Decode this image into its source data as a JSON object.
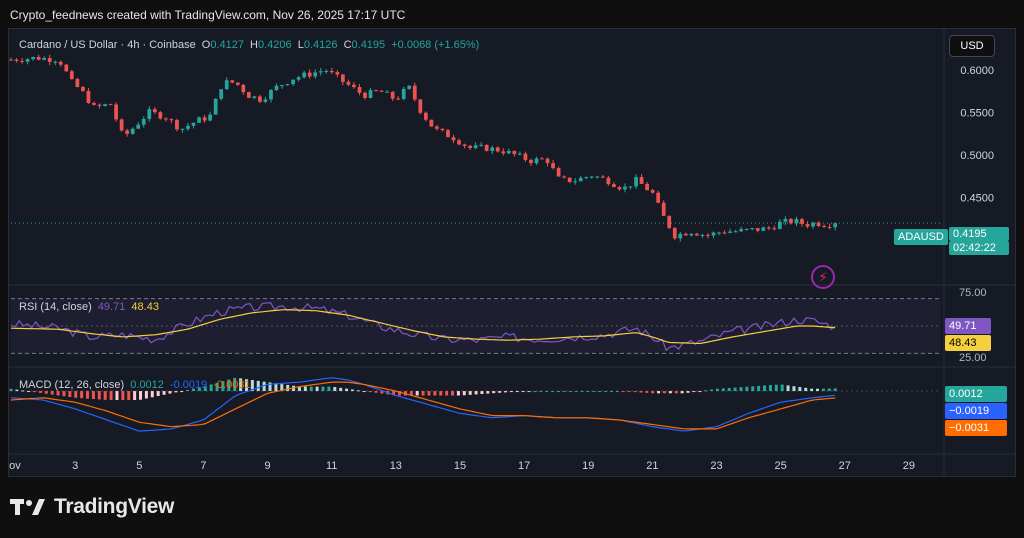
{
  "credit": "Crypto_feednews created with TradingView.com, Nov 26, 2025 17:17 UTC",
  "symbol": {
    "name": "Cardano / US Dollar · 4h · Coinbase",
    "o_label": "O",
    "o_value": "0.4127",
    "h_label": "H",
    "h_value": "0.4206",
    "l_label": "L",
    "l_value": "0.4126",
    "c_label": "C",
    "c_value": "0.4195",
    "change": "+0.0068 (+1.65%)"
  },
  "currency": "USD",
  "price_tag": {
    "ticker": "ADAUSD",
    "price": "0.4195",
    "countdown": "02:42:22"
  },
  "rsi": {
    "label": "RSI (14, close)",
    "value": "49.71",
    "ma": "48.43",
    "levels": [
      "75.00",
      "25.00"
    ]
  },
  "macd": {
    "label": "MACD (12, 26, close)",
    "hist": "0.0012",
    "macd": "-0.0019",
    "signal": "-0.0031",
    "hist_tag": "0.0012",
    "macd_tag": "−0.0019",
    "signal_tag": "−0.0031"
  },
  "footer": {
    "brand": "TradingView"
  },
  "colors": {
    "up": "#26a69a",
    "down": "#ef5350",
    "rsi": "#7e57c2",
    "rsi_ma": "#f4d03f",
    "macd": "#2962ff",
    "signal": "#ff6d00",
    "bg": "#161a25"
  },
  "chart_data": [
    {
      "type": "candlestick",
      "title": "Cardano / US Dollar · 4h · Coinbase",
      "y_ticks": [
        "0.6000",
        "0.5500",
        "0.5000",
        "0.4500"
      ],
      "ylim": [
        0.375,
        0.615
      ],
      "x_ticks": [
        "Nov",
        "3",
        "5",
        "7",
        "9",
        "11",
        "13",
        "15",
        "17",
        "19",
        "21",
        "23",
        "25",
        "27",
        "29"
      ],
      "xlim": [
        1,
        30
      ],
      "last_close": 0.4195,
      "close_path": [
        [
          1.0,
          0.612
        ],
        [
          1.8,
          0.614
        ],
        [
          2.5,
          0.612
        ],
        [
          2.9,
          0.585
        ],
        [
          3.2,
          0.575
        ],
        [
          3.6,
          0.555
        ],
        [
          4.1,
          0.56
        ],
        [
          4.5,
          0.52
        ],
        [
          4.9,
          0.535
        ],
        [
          5.3,
          0.55
        ],
        [
          5.8,
          0.545
        ],
        [
          6.3,
          0.53
        ],
        [
          6.8,
          0.54
        ],
        [
          7.2,
          0.545
        ],
        [
          7.6,
          0.585
        ],
        [
          8.0,
          0.585
        ],
        [
          8.4,
          0.57
        ],
        [
          8.8,
          0.565
        ],
        [
          9.3,
          0.58
        ],
        [
          9.8,
          0.59
        ],
        [
          10.3,
          0.595
        ],
        [
          10.8,
          0.6
        ],
        [
          11.2,
          0.59
        ],
        [
          11.6,
          0.58
        ],
        [
          12.0,
          0.57
        ],
        [
          12.5,
          0.575
        ],
        [
          13.0,
          0.565
        ],
        [
          13.4,
          0.58
        ],
        [
          13.8,
          0.55
        ],
        [
          14.2,
          0.53
        ],
        [
          14.8,
          0.52
        ],
        [
          15.3,
          0.508
        ],
        [
          15.8,
          0.508
        ],
        [
          16.3,
          0.505
        ],
        [
          16.7,
          0.5
        ],
        [
          17.2,
          0.493
        ],
        [
          17.7,
          0.495
        ],
        [
          18.1,
          0.47
        ],
        [
          18.6,
          0.47
        ],
        [
          19.1,
          0.476
        ],
        [
          19.6,
          0.47
        ],
        [
          20.1,
          0.46
        ],
        [
          20.5,
          0.47
        ],
        [
          21.0,
          0.455
        ],
        [
          21.3,
          0.43
        ],
        [
          21.7,
          0.405
        ],
        [
          22.2,
          0.41
        ],
        [
          22.7,
          0.405
        ],
        [
          23.2,
          0.41
        ],
        [
          23.7,
          0.41
        ],
        [
          24.2,
          0.412
        ],
        [
          24.6,
          0.413
        ],
        [
          25.0,
          0.42
        ],
        [
          25.4,
          0.422
        ],
        [
          25.8,
          0.418
        ],
        [
          26.1,
          0.42
        ],
        [
          26.4,
          0.418
        ],
        [
          26.7,
          0.4195
        ]
      ]
    },
    {
      "type": "line",
      "title": "RSI (14, close)",
      "ylim": [
        18,
        82
      ],
      "levels": [
        75,
        25
      ],
      "series": [
        {
          "name": "RSI",
          "points": [
            [
              1.0,
              52
            ],
            [
              2.5,
              48
            ],
            [
              3.5,
              40
            ],
            [
              4.5,
              42
            ],
            [
              5.5,
              38
            ],
            [
              6.5,
              52
            ],
            [
              7.5,
              63
            ],
            [
              8.5,
              67
            ],
            [
              9.5,
              68
            ],
            [
              10.5,
              66
            ],
            [
              11.5,
              60
            ],
            [
              12.5,
              50
            ],
            [
              13.5,
              43
            ],
            [
              14.5,
              38
            ],
            [
              15.5,
              37
            ],
            [
              16.5,
              40
            ],
            [
              17.5,
              38
            ],
            [
              18.5,
              40
            ],
            [
              19.5,
              42
            ],
            [
              20.5,
              48
            ],
            [
              21.0,
              40
            ],
            [
              21.5,
              30
            ],
            [
              22.5,
              36
            ],
            [
              23.5,
              45
            ],
            [
              24.5,
              50
            ],
            [
              25.5,
              56
            ],
            [
              26.0,
              55
            ],
            [
              26.7,
              49.71
            ]
          ]
        },
        {
          "name": "RSI MA",
          "points": [
            [
              1.0,
              48
            ],
            [
              2.5,
              47
            ],
            [
              3.5,
              43
            ],
            [
              4.5,
              40
            ],
            [
              5.5,
              42
            ],
            [
              6.5,
              47
            ],
            [
              7.5,
              56
            ],
            [
              8.5,
              62
            ],
            [
              9.5,
              65
            ],
            [
              10.5,
              64
            ],
            [
              11.5,
              60
            ],
            [
              12.5,
              53
            ],
            [
              13.5,
              46
            ],
            [
              14.5,
              40
            ],
            [
              15.5,
              38
            ],
            [
              16.5,
              37
            ],
            [
              17.5,
              38
            ],
            [
              18.5,
              40
            ],
            [
              19.5,
              41
            ],
            [
              20.5,
              44
            ],
            [
              21.0,
              40
            ],
            [
              21.5,
              35
            ],
            [
              22.5,
              34
            ],
            [
              23.5,
              40
            ],
            [
              24.5,
              45
            ],
            [
              25.5,
              50
            ],
            [
              26.0,
              50
            ],
            [
              26.7,
              48.43
            ]
          ]
        }
      ]
    },
    {
      "type": "line",
      "title": "MACD (12, 26, close)",
      "ylim": [
        -0.026,
        0.009
      ],
      "series": [
        {
          "name": "MACD",
          "points": [
            [
              1.0,
              -0.003
            ],
            [
              2.0,
              -0.004
            ],
            [
              3.0,
              -0.008
            ],
            [
              4.0,
              -0.013
            ],
            [
              5.0,
              -0.018
            ],
            [
              6.0,
              -0.017
            ],
            [
              7.0,
              -0.013
            ],
            [
              8.0,
              -0.002
            ],
            [
              9.0,
              0.003
            ],
            [
              10.0,
              0.004
            ],
            [
              11.0,
              0.006
            ],
            [
              11.5,
              0.005
            ],
            [
              12.0,
              0.003
            ],
            [
              13.0,
              -0.002
            ],
            [
              14.0,
              -0.006
            ],
            [
              15.0,
              -0.01
            ],
            [
              16.0,
              -0.012
            ],
            [
              17.0,
              -0.011
            ],
            [
              18.0,
              -0.012
            ],
            [
              19.0,
              -0.012
            ],
            [
              20.0,
              -0.013
            ],
            [
              21.0,
              -0.016
            ],
            [
              22.0,
              -0.018
            ],
            [
              23.0,
              -0.016
            ],
            [
              24.0,
              -0.01
            ],
            [
              25.0,
              -0.005
            ],
            [
              26.0,
              -0.003
            ],
            [
              26.7,
              -0.0019
            ]
          ]
        },
        {
          "name": "Signal",
          "points": [
            [
              1.0,
              -0.004
            ],
            [
              2.0,
              -0.003
            ],
            [
              3.0,
              -0.005
            ],
            [
              4.0,
              -0.009
            ],
            [
              5.0,
              -0.014
            ],
            [
              6.0,
              -0.016
            ],
            [
              7.0,
              -0.015
            ],
            [
              8.0,
              -0.008
            ],
            [
              9.0,
              -0.001
            ],
            [
              10.0,
              0.002
            ],
            [
              11.0,
              0.004
            ],
            [
              11.5,
              0.004
            ],
            [
              12.0,
              0.003
            ],
            [
              13.0,
              0.0
            ],
            [
              14.0,
              -0.004
            ],
            [
              15.0,
              -0.008
            ],
            [
              16.0,
              -0.011
            ],
            [
              17.0,
              -0.011
            ],
            [
              18.0,
              -0.012
            ],
            [
              19.0,
              -0.012
            ],
            [
              20.0,
              -0.013
            ],
            [
              21.0,
              -0.015
            ],
            [
              22.0,
              -0.017
            ],
            [
              23.0,
              -0.017
            ],
            [
              24.0,
              -0.012
            ],
            [
              25.0,
              -0.008
            ],
            [
              26.0,
              -0.004
            ],
            [
              26.7,
              -0.0031
            ]
          ]
        }
      ]
    }
  ]
}
